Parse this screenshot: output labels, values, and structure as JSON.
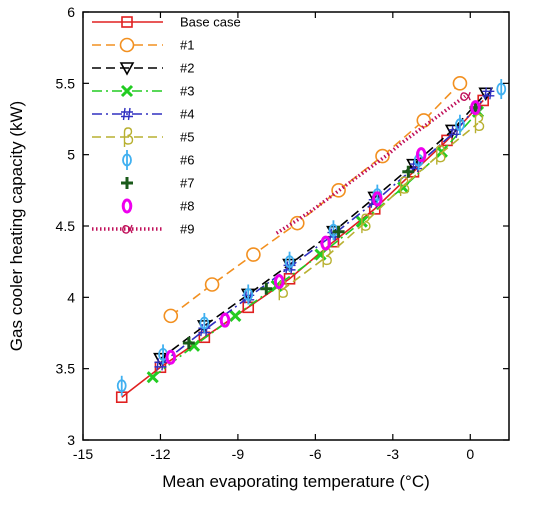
{
  "chart_data": {
    "type": "line",
    "xlabel": "Mean evaporating temperature (°C)",
    "ylabel": "Gas cooler heating capacity (kW)",
    "xlim": [
      -15,
      1.5
    ],
    "ylim": [
      3,
      6
    ],
    "xticks": [
      -15,
      -12,
      -9,
      -6,
      -3,
      0
    ],
    "yticks": [
      3,
      3.5,
      4,
      4.5,
      5,
      5.5,
      6
    ],
    "grid": false,
    "legend_position": "top-left",
    "series": [
      {
        "name": "Base case",
        "color": "#e02020",
        "dash": "solid",
        "marker": "square",
        "x": [
          -13.5,
          -12,
          -10.3,
          -8.6,
          -7,
          -5.3,
          -3.7,
          -2.2,
          -0.9,
          0.5
        ],
        "y": [
          3.3,
          3.51,
          3.72,
          3.93,
          4.13,
          4.39,
          4.62,
          4.88,
          5.1,
          5.38
        ]
      },
      {
        "name": "#1",
        "color": "#f29020",
        "dash": "dashed",
        "marker": "circle",
        "x": [
          -11.6,
          -10,
          -8.4,
          -6.7,
          -5.1,
          -3.4,
          -1.8,
          -0.4
        ],
        "y": [
          3.87,
          4.09,
          4.3,
          4.52,
          4.75,
          4.99,
          5.24,
          5.5
        ]
      },
      {
        "name": "#2",
        "color": "#000000",
        "dash": "dashed",
        "marker": "triangle-down",
        "x": [
          -12,
          -10.3,
          -8.6,
          -7,
          -5.3,
          -3.7,
          -2.2,
          -0.7,
          0.6
        ],
        "y": [
          3.57,
          3.8,
          4.02,
          4.23,
          4.46,
          4.7,
          4.93,
          5.17,
          5.43
        ]
      },
      {
        "name": "#3",
        "color": "#22cc22",
        "dash": "dashdot",
        "marker": "x",
        "x": [
          -12.3,
          -10.7,
          -9.1,
          -7.5,
          -5.8,
          -4.2,
          -2.6,
          -1.1,
          0.3
        ],
        "y": [
          3.44,
          3.66,
          3.87,
          4.08,
          4.3,
          4.53,
          4.77,
          5.02,
          5.3
        ]
      },
      {
        "name": "#4",
        "color": "#3030c0",
        "dash": "dashdot",
        "marker": "hash",
        "x": [
          -12,
          -10.3,
          -8.6,
          -7,
          -5.3,
          -3.7,
          -2.1,
          -0.6,
          0.7
        ],
        "y": [
          3.53,
          3.77,
          4.0,
          4.21,
          4.44,
          4.67,
          4.92,
          5.16,
          5.43
        ]
      },
      {
        "name": "#5",
        "color": "#b8b030",
        "dash": "dashed",
        "marker": "beta",
        "x": [
          -7.3,
          -5.6,
          -4.1,
          -2.6,
          -1.2,
          0.3
        ],
        "y": [
          4.05,
          4.28,
          4.52,
          4.78,
          5.0,
          5.22
        ]
      },
      {
        "name": "#6",
        "color": "#40b0f0",
        "dash": "none",
        "marker": "phi",
        "x": [
          -13.5,
          -11.9,
          -10.3,
          -8.6,
          -7,
          -5.3,
          -3.6,
          -2,
          -0.4,
          1.2
        ],
        "y": [
          3.38,
          3.6,
          3.82,
          4.02,
          4.25,
          4.47,
          4.72,
          4.96,
          5.21,
          5.46
        ]
      },
      {
        "name": "#7",
        "color": "#1a5a1a",
        "dash": "none",
        "marker": "plus",
        "x": [
          -10.9,
          -7.9,
          -5.1,
          -2.4,
          0.2
        ],
        "y": [
          3.68,
          4.06,
          4.46,
          4.88,
          5.33
        ]
      },
      {
        "name": "#8",
        "color": "#ee00ee",
        "dash": "none",
        "marker": "zero",
        "x": [
          -11.6,
          -9.5,
          -7.4,
          -5.6,
          -3.6,
          -1.9,
          0.2
        ],
        "y": [
          3.58,
          3.84,
          4.11,
          4.38,
          4.69,
          5.0,
          5.33
        ]
      },
      {
        "name": "#9",
        "color": "#c0105a",
        "dash": "dotted-thick",
        "marker": "alpha",
        "x": [
          -7.5,
          -6.8,
          -6.2,
          -5.6,
          -5,
          -4.4,
          -3.8,
          -3.2,
          -2.6,
          -2,
          -1.4,
          -0.8,
          -0.2
        ],
        "y": [
          4.45,
          4.53,
          4.6,
          4.68,
          4.76,
          4.84,
          4.92,
          5.0,
          5.09,
          5.17,
          5.25,
          5.33,
          5.41
        ]
      }
    ]
  }
}
